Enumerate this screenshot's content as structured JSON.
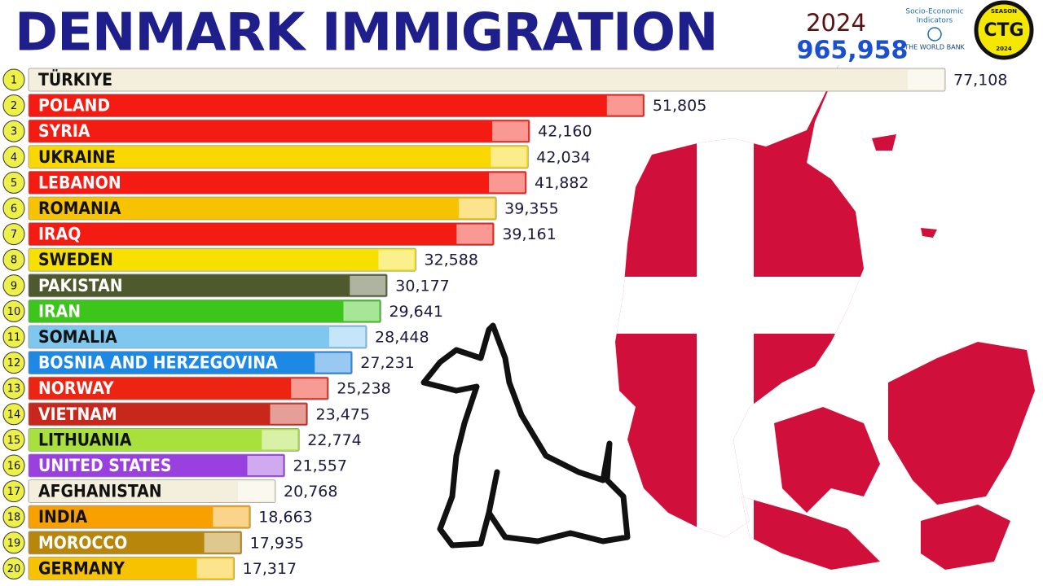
{
  "chart_data": {
    "type": "bar",
    "orientation": "horizontal",
    "title": "DENMARK IMMIGRATION",
    "year": "2024",
    "total": "965,958",
    "source": {
      "line1": "Socio-Economic",
      "line2": "Indicators",
      "line3": "THE WORLD BANK"
    },
    "badge": {
      "top": "SEASON",
      "middle": "CTG",
      "bottom": "2024"
    },
    "ranks": [
      1,
      2,
      3,
      4,
      5,
      6,
      7,
      8,
      9,
      10,
      11,
      12,
      13,
      14,
      15,
      16,
      17,
      18,
      19,
      20
    ],
    "categories": [
      "TÜRKIYE",
      "POLAND",
      "SYRIA",
      "UKRAINE",
      "LEBANON",
      "ROMANIA",
      "IRAQ",
      "SWEDEN",
      "PAKISTAN",
      "IRAN",
      "SOMALIA",
      "BOSNIA AND HERZEGOVINA",
      "NORWAY",
      "VIETNAM",
      "LITHUANIA",
      "UNITED STATES",
      "AFGHANISTAN",
      "INDIA",
      "MOROCCO",
      "GERMANY"
    ],
    "values": [
      77108,
      51805,
      42160,
      42034,
      41882,
      39355,
      39161,
      32588,
      30177,
      29641,
      28448,
      27231,
      25238,
      23475,
      22774,
      21557,
      20768,
      18663,
      17935,
      17317
    ],
    "value_labels": [
      "77,108",
      "51,805",
      "42,160",
      "42,034",
      "41,882",
      "39,355",
      "39,161",
      "32,588",
      "30,177",
      "29,641",
      "28,448",
      "27,231",
      "25,238",
      "23,475",
      "22,774",
      "21,557",
      "20,768",
      "18,663",
      "17,935",
      "17,317"
    ],
    "colors": [
      "#f3efdc",
      "#f41c12",
      "#f41c12",
      "#f8d800",
      "#f41c12",
      "#f7c300",
      "#f41c12",
      "#f5e000",
      "#4e5a2e",
      "#3cc51a",
      "#7ec8ef",
      "#1e88e5",
      "#ee2412",
      "#c8281c",
      "#a8e03c",
      "#9a40e0",
      "#f3efdc",
      "#f7a000",
      "#b8860b",
      "#f7c300"
    ]
  }
}
